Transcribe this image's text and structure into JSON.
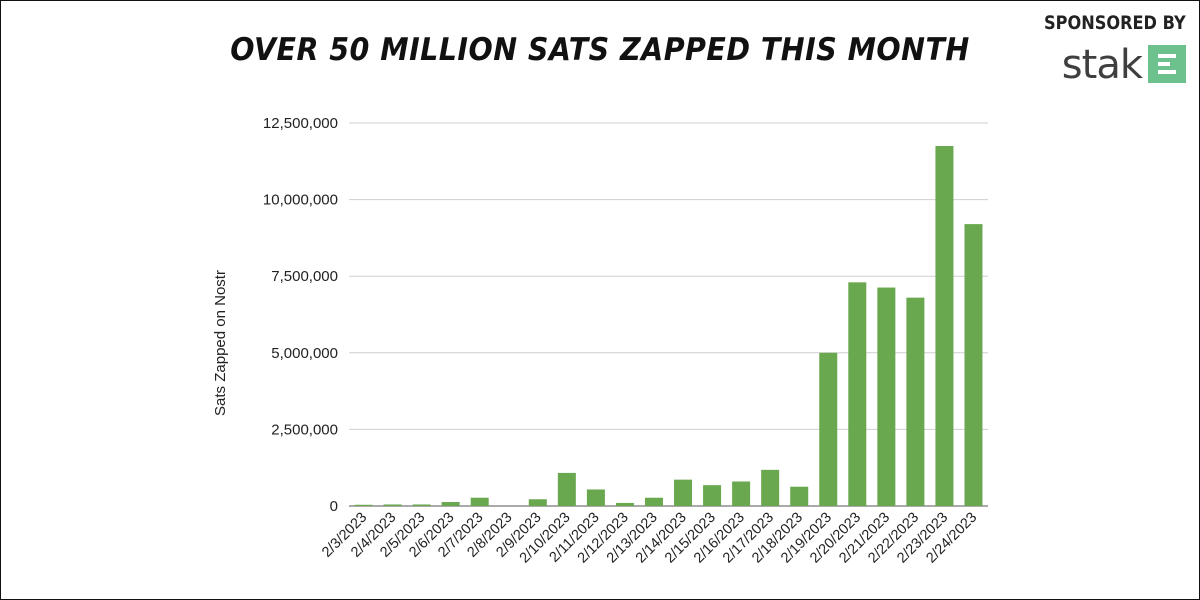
{
  "header": {
    "title": "OVER 50 MILLION SATS ZAPPED THIS MONTH"
  },
  "sponsor": {
    "label": "SPONSORED BY",
    "brand": "stak",
    "logo_icon": "stak-logo-icon",
    "logo_color": "#6cc18c"
  },
  "chart_data": {
    "type": "bar",
    "title": "OVER 50 MILLION SATS ZAPPED THIS MONTH",
    "xlabel": "",
    "ylabel": "Sats Zapped on Nostr",
    "categories": [
      "2/3/2023",
      "2/4/2023",
      "2/5/2023",
      "2/6/2023",
      "2/7/2023",
      "2/8/2023",
      "2/9/2023",
      "2/10/2023",
      "2/11/2023",
      "2/12/2023",
      "2/13/2023",
      "2/14/2023",
      "2/15/2023",
      "2/16/2023",
      "2/17/2023",
      "2/18/2023",
      "2/19/2023",
      "2/20/2023",
      "2/21/2023",
      "2/22/2023",
      "2/23/2023",
      "2/24/2023"
    ],
    "values": [
      40000,
      50000,
      50000,
      130000,
      270000,
      0,
      220000,
      1080000,
      540000,
      100000,
      270000,
      860000,
      680000,
      800000,
      1180000,
      630000,
      5000000,
      7300000,
      7130000,
      6800000,
      11750000,
      9200000
    ],
    "ylim": [
      0,
      12500000
    ],
    "yticks": [
      0,
      2500000,
      5000000,
      7500000,
      10000000,
      12500000
    ],
    "ytick_labels": [
      "0",
      "2,500,000",
      "5,000,000",
      "7,500,000",
      "10,000,000",
      "12,500,000"
    ],
    "bar_color": "#6aa84f",
    "grid": true,
    "legend": "none"
  }
}
